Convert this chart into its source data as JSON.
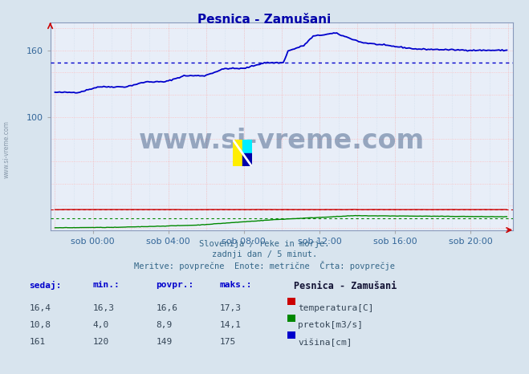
{
  "title": "Pesnica - Zamušani",
  "bg_color": "#d8e4ee",
  "plot_bg_color": "#e8eef8",
  "temp_color": "#cc0000",
  "flow_color": "#008800",
  "height_color": "#0000cc",
  "avg_temp": 16.6,
  "avg_flow": 8.9,
  "avg_height": 149,
  "xlabel_ticks": [
    "sob 00:00",
    "sob 04:00",
    "sob 08:00",
    "sob 12:00",
    "sob 16:00",
    "sob 20:00"
  ],
  "yticks": [
    100,
    160
  ],
  "ylim_min": -2,
  "ylim_max": 185,
  "xlim_min": -3,
  "xlim_max": 291,
  "subtitle1": "Slovenija / reke in morje.",
  "subtitle2": "zadnji dan / 5 minut.",
  "subtitle3": "Meritve: povprečne  Enote: metrične  Črta: povprečje",
  "table_headers": [
    "sedaj:",
    "min.:",
    "povpr.:",
    "maks.:"
  ],
  "table_label": "Pesnica - Zamušani",
  "temp_row": [
    "16,4",
    "16,3",
    "16,6",
    "17,3"
  ],
  "flow_row": [
    "10,8",
    "4,0",
    "8,9",
    "14,1"
  ],
  "height_row": [
    "161",
    "120",
    "149",
    "175"
  ],
  "label_temp": "temperatura[C]",
  "label_flow": "pretok[m3/s]",
  "label_height": "višina[cm]"
}
